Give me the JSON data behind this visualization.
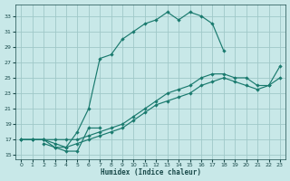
{
  "xlabel": "Humidex (Indice chaleur)",
  "bg_color": "#c8e8e8",
  "grid_color": "#a0c8c8",
  "line_color": "#1a7a6e",
  "xlim": [
    -0.5,
    23.5
  ],
  "ylim": [
    14.5,
    34.5
  ],
  "xticks": [
    0,
    1,
    2,
    3,
    4,
    5,
    6,
    7,
    8,
    9,
    10,
    11,
    12,
    13,
    14,
    15,
    16,
    17,
    18,
    19,
    20,
    21,
    22,
    23
  ],
  "yticks": [
    15,
    17,
    19,
    21,
    23,
    25,
    27,
    29,
    31,
    33
  ],
  "curve1_x": [
    0,
    1,
    2,
    3,
    4,
    5,
    6,
    7,
    8,
    9,
    10,
    11,
    12,
    13,
    14,
    15,
    16,
    17,
    18
  ],
  "curve1_y": [
    17,
    17,
    17,
    16,
    16,
    18,
    21,
    27.5,
    28,
    30,
    31,
    32,
    32.5,
    33.5,
    32.5,
    33.5,
    33,
    32,
    28.5
  ],
  "curve2_x": [
    2,
    3,
    4,
    5,
    6,
    7
  ],
  "curve2_y": [
    16.5,
    16,
    15.5,
    15.5,
    18.5,
    18.5
  ],
  "curve3_x": [
    0,
    1,
    2,
    3,
    4,
    5,
    6,
    7,
    8,
    9,
    10,
    11,
    12,
    13,
    14,
    15,
    16,
    17,
    18,
    19,
    20,
    21,
    22,
    23
  ],
  "curve3_y": [
    17,
    17,
    17,
    17,
    17,
    17,
    17.5,
    18,
    18.5,
    19,
    20,
    21,
    22,
    23,
    23.5,
    24,
    25,
    25.5,
    25.5,
    25,
    25,
    24,
    24,
    26.5
  ],
  "curve4_x": [
    0,
    1,
    2,
    3,
    4,
    5,
    6,
    7,
    8,
    9,
    10,
    11,
    12,
    13,
    14,
    15,
    16,
    17,
    18,
    19,
    20,
    21,
    22,
    23
  ],
  "curve4_y": [
    17,
    17,
    17,
    16.5,
    16,
    16.5,
    17,
    17.5,
    18,
    18.5,
    19.5,
    20.5,
    21.5,
    22,
    22.5,
    23,
    24,
    24.5,
    25,
    24.5,
    24,
    23.5,
    24,
    25
  ]
}
